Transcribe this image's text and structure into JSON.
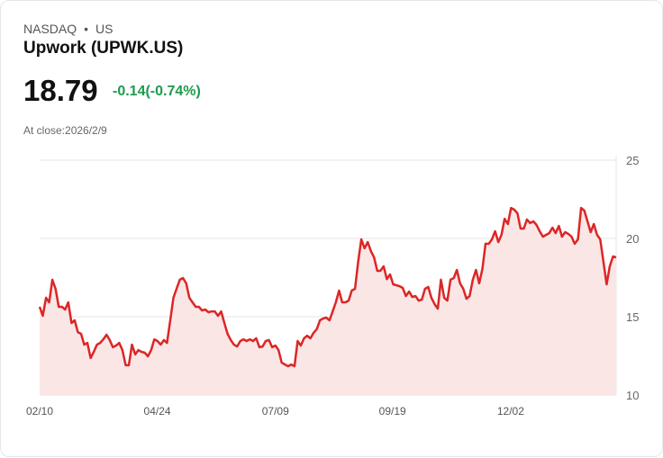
{
  "header": {
    "exchange": "NASDAQ",
    "separator": "•",
    "region": "US",
    "title": "Upwork (UPWK.US)",
    "price": "18.79",
    "change": "-0.14(-0.74%)",
    "close_label": "At close:2026/2/9"
  },
  "colors": {
    "line": "#dc2626",
    "fill": "#fbe6e6",
    "grid": "#e6e6e6",
    "up_text": "#1e9a4c"
  },
  "chart_data": {
    "type": "area",
    "title": "Upwork (UPWK.US)",
    "xlabel": "",
    "ylabel": "",
    "ylim": [
      10,
      25
    ],
    "yticks": [
      "25",
      "20",
      "15",
      "10"
    ],
    "ytick_values": [
      25,
      20,
      15,
      10
    ],
    "xticks": [
      "02/10",
      "04/24",
      "07/09",
      "09/19",
      "12/02"
    ],
    "xtick_fraction": [
      0,
      0.204,
      0.409,
      0.612,
      0.817
    ],
    "grid": true,
    "legend": "none",
    "values": [
      15.63,
      15.06,
      16.21,
      15.92,
      17.36,
      16.78,
      15.63,
      15.63,
      15.46,
      15.92,
      14.6,
      14.77,
      14.02,
      13.91,
      13.22,
      13.33,
      12.36,
      12.76,
      13.22,
      13.33,
      13.56,
      13.85,
      13.51,
      13.05,
      13.16,
      13.33,
      12.87,
      11.9,
      11.9,
      13.22,
      12.59,
      12.87,
      12.76,
      12.7,
      12.47,
      12.87,
      13.56,
      13.45,
      13.22,
      13.51,
      13.33,
      14.77,
      16.21,
      16.78,
      17.36,
      17.47,
      17.13,
      16.21,
      15.92,
      15.63,
      15.63,
      15.4,
      15.46,
      15.29,
      15.34,
      15.34,
      15.06,
      15.34,
      14.6,
      13.91,
      13.51,
      13.22,
      13.1,
      13.45,
      13.56,
      13.45,
      13.56,
      13.45,
      13.62,
      13.05,
      13.1,
      13.45,
      13.51,
      13.05,
      13.16,
      12.87,
      12.07,
      11.95,
      11.84,
      11.95,
      11.84,
      13.45,
      13.16,
      13.62,
      13.79,
      13.62,
      13.97,
      14.2,
      14.77,
      14.89,
      14.94,
      14.77,
      15.34,
      15.92,
      16.67,
      15.92,
      15.92,
      16.03,
      16.67,
      16.78,
      18.51,
      19.94,
      19.37,
      19.77,
      19.2,
      18.79,
      17.93,
      17.93,
      18.22,
      17.41,
      17.7,
      17.07,
      17.01,
      16.95,
      16.84,
      16.32,
      16.61,
      16.26,
      16.32,
      16.03,
      16.09,
      16.78,
      16.9,
      16.21,
      15.8,
      15.52,
      17.36,
      16.21,
      16.03,
      17.36,
      17.47,
      17.99,
      17.13,
      16.78,
      16.15,
      16.32,
      17.36,
      17.99,
      17.13,
      18.05,
      19.66,
      19.66,
      19.94,
      20.46,
      19.77,
      20.23,
      21.26,
      20.92,
      21.95,
      21.84,
      21.61,
      20.63,
      20.63,
      21.21,
      20.98,
      21.09,
      20.86,
      20.46,
      20.11,
      20.23,
      20.34,
      20.69,
      20.34,
      20.8,
      20.11,
      20.4,
      20.29,
      20.11,
      19.66,
      19.94,
      21.95,
      21.78,
      21.09,
      20.4,
      20.92,
      20.23,
      19.94,
      18.51,
      17.07,
      18.22,
      18.85,
      18.79
    ]
  }
}
